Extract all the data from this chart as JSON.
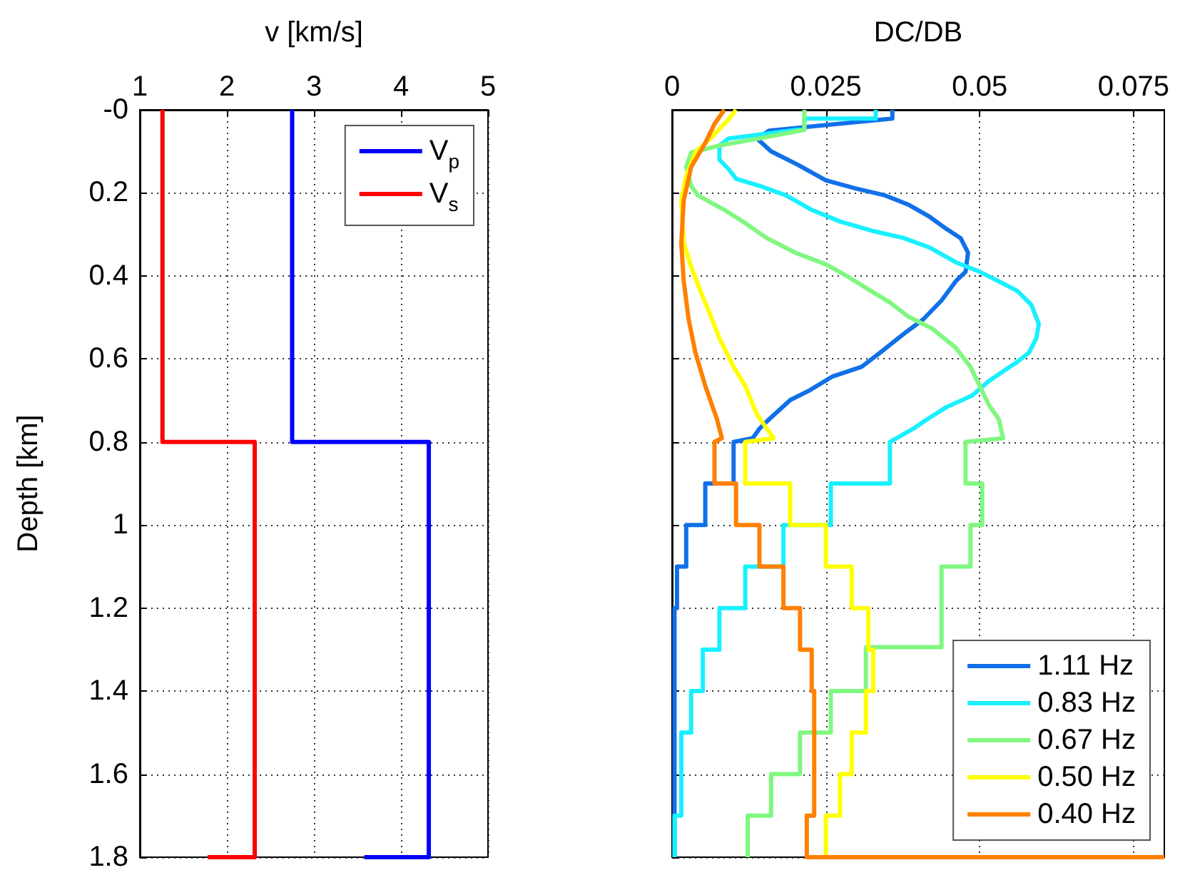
{
  "chart_data": [
    {
      "type": "line",
      "xlabel": "v [km/s]",
      "ylabel": "Depth [km]",
      "xlim": [
        1,
        5
      ],
      "xticks": [
        1,
        2,
        3,
        4,
        5
      ],
      "ylim": [
        1.8,
        0
      ],
      "yticks": [
        {
          "value": 0,
          "label": "-0"
        },
        0.2,
        0.4,
        0.6,
        0.8,
        1,
        1.2,
        1.4,
        1.6,
        1.8
      ],
      "grid": true,
      "legend": "top right",
      "series": [
        {
          "name": "V$_{p}$",
          "color": "#0000ff",
          "x": [
            2.75,
            2.75,
            4.32,
            4.32,
            3.58
          ],
          "values": [
            0,
            0.8,
            0.8,
            1.8,
            1.8
          ]
        },
        {
          "name": "V$_{s}$",
          "color": "#ff0000",
          "x": [
            1.26,
            1.26,
            2.32,
            2.32,
            1.78
          ],
          "values": [
            0,
            0.8,
            0.8,
            1.8,
            1.8
          ]
        }
      ]
    },
    {
      "type": "line",
      "xlabel": "DC/DB",
      "xlim": [
        0,
        0.08
      ],
      "xticks": [
        0,
        0.025,
        0.05,
        0.075
      ],
      "ylim": [
        1.8,
        0
      ],
      "yticks": [
        0,
        0.2,
        0.4,
        0.6,
        0.8,
        1,
        1.2,
        1.4,
        1.6,
        1.8
      ],
      "tick_labels": "x",
      "grid": true,
      "legend": "bottom right",
      "series": [
        {
          "name": "1.11 Hz",
          "color": "#1170e8",
          "x": [
            0.0358,
            0.0358,
            0.0158,
            0.0138,
            0.0161,
            0.0204,
            0.025,
            0.03,
            0.0346,
            0.0385,
            0.0419,
            0.0446,
            0.0469,
            0.0481,
            0.0477,
            0.0461,
            0.0438,
            0.0408,
            0.0377,
            0.0338,
            0.0308,
            0.0261,
            0.0223,
            0.0192,
            0.0158,
            0.0142,
            0.0131,
            0.01,
            0.01,
            0.0054,
            0.0054,
            0.0023,
            0.0023,
            0.0008,
            0.0008,
            0.0004,
            0.0004
          ],
          "values": [
            0,
            0.021,
            0.05,
            0.069,
            0.1,
            0.132,
            0.17,
            0.19,
            0.206,
            0.229,
            0.258,
            0.287,
            0.309,
            0.344,
            0.39,
            0.413,
            0.459,
            0.505,
            0.539,
            0.585,
            0.619,
            0.642,
            0.676,
            0.699,
            0.745,
            0.768,
            0.791,
            0.8,
            0.9,
            0.9,
            1.0,
            1.0,
            1.1,
            1.1,
            1.2,
            1.2,
            1.8
          ]
        },
        {
          "name": "0.83 Hz",
          "color": "#19f0ff",
          "x": [
            0.0331,
            0.0331,
            0.0215,
            0.0215,
            0.0092,
            0.0077,
            0.0077,
            0.0092,
            0.0104,
            0.0142,
            0.0185,
            0.0227,
            0.0273,
            0.0327,
            0.0377,
            0.0419,
            0.0461,
            0.05,
            0.0531,
            0.0561,
            0.0584,
            0.0596,
            0.0592,
            0.058,
            0.0561,
            0.0538,
            0.0515,
            0.0488,
            0.0446,
            0.0415,
            0.0392,
            0.0354,
            0.0354,
            0.0258,
            0.0258,
            0.0181,
            0.0181,
            0.0119,
            0.0119,
            0.0077,
            0.0077,
            0.005,
            0.005,
            0.0031,
            0.0031,
            0.0015,
            0.0015,
            0.0004,
            0.0004
          ],
          "values": [
            0,
            0.021,
            0.021,
            0.046,
            0.069,
            0.086,
            0.12,
            0.143,
            0.166,
            0.183,
            0.206,
            0.241,
            0.269,
            0.292,
            0.309,
            0.332,
            0.367,
            0.39,
            0.413,
            0.436,
            0.47,
            0.516,
            0.55,
            0.585,
            0.607,
            0.63,
            0.653,
            0.688,
            0.716,
            0.745,
            0.768,
            0.8,
            0.9,
            0.9,
            1.0,
            1.0,
            1.1,
            1.1,
            1.2,
            1.2,
            1.3,
            1.3,
            1.4,
            1.4,
            1.5,
            1.5,
            1.7,
            1.7,
            1.8
          ]
        },
        {
          "name": "0.67 Hz",
          "color": "#80f780",
          "x": [
            0.0215,
            0.0215,
            0.0142,
            0.0077,
            0.0031,
            0.0023,
            0.0031,
            0.0042,
            0.0085,
            0.0115,
            0.0154,
            0.02,
            0.025,
            0.0285,
            0.0323,
            0.0354,
            0.0385,
            0.0423,
            0.0461,
            0.0485,
            0.05,
            0.0515,
            0.0531,
            0.0538,
            0.0477,
            0.0477,
            0.0504,
            0.0504,
            0.0485,
            0.0485,
            0.0438,
            0.0438,
            0.0315,
            0.0315,
            0.0258,
            0.0258,
            0.0208,
            0.0208,
            0.0161,
            0.0161,
            0.0123,
            0.0123
          ],
          "values": [
            0,
            0.048,
            0.069,
            0.086,
            0.103,
            0.138,
            0.183,
            0.206,
            0.241,
            0.269,
            0.309,
            0.344,
            0.372,
            0.401,
            0.436,
            0.464,
            0.499,
            0.527,
            0.573,
            0.619,
            0.665,
            0.711,
            0.745,
            0.791,
            0.8,
            0.9,
            0.9,
            1.0,
            1.0,
            1.1,
            1.1,
            1.294,
            1.294,
            1.4,
            1.4,
            1.5,
            1.5,
            1.6,
            1.6,
            1.7,
            1.7,
            1.8
          ]
        },
        {
          "name": "0.50 Hz",
          "color": "#ffff00",
          "x": [
            0.0104,
            0.0092,
            0.0062,
            0.0038,
            0.0023,
            0.0015,
            0.0019,
            0.0031,
            0.0046,
            0.0062,
            0.0077,
            0.01,
            0.0119,
            0.0138,
            0.0165,
            0.0119,
            0.0119,
            0.0192,
            0.0192,
            0.025,
            0.025,
            0.0292,
            0.0292,
            0.0319,
            0.0319,
            0.0327,
            0.0327,
            0.0315,
            0.0315,
            0.0292,
            0.0292,
            0.0273,
            0.0273,
            0.025,
            0.025
          ],
          "values": [
            0,
            0.023,
            0.069,
            0.103,
            0.16,
            0.218,
            0.321,
            0.378,
            0.436,
            0.493,
            0.55,
            0.619,
            0.665,
            0.734,
            0.791,
            0.8,
            0.9,
            0.9,
            1.0,
            1.0,
            1.1,
            1.1,
            1.2,
            1.2,
            1.3,
            1.3,
            1.4,
            1.4,
            1.5,
            1.5,
            1.6,
            1.6,
            1.7,
            1.7,
            1.8
          ]
        },
        {
          "name": "0.40 Hz",
          "color": "#ff8000",
          "x": [
            0.0085,
            0.0069,
            0.0054,
            0.0031,
            0.0019,
            0.0015,
            0.0019,
            0.0027,
            0.0038,
            0.0054,
            0.0073,
            0.0081,
            0.0069,
            0.0069,
            0.0104,
            0.0104,
            0.0142,
            0.0142,
            0.0181,
            0.0181,
            0.0208,
            0.0208,
            0.0227,
            0.0227,
            0.0231,
            0.0231,
            0.0219,
            0.0219,
            0.08
          ],
          "values": [
            0,
            0.034,
            0.08,
            0.138,
            0.218,
            0.321,
            0.413,
            0.505,
            0.585,
            0.665,
            0.745,
            0.791,
            0.8,
            0.9,
            0.9,
            1.0,
            1.0,
            1.1,
            1.1,
            1.2,
            1.2,
            1.3,
            1.3,
            1.4,
            1.4,
            1.7,
            1.7,
            1.8,
            1.8
          ]
        }
      ]
    }
  ]
}
